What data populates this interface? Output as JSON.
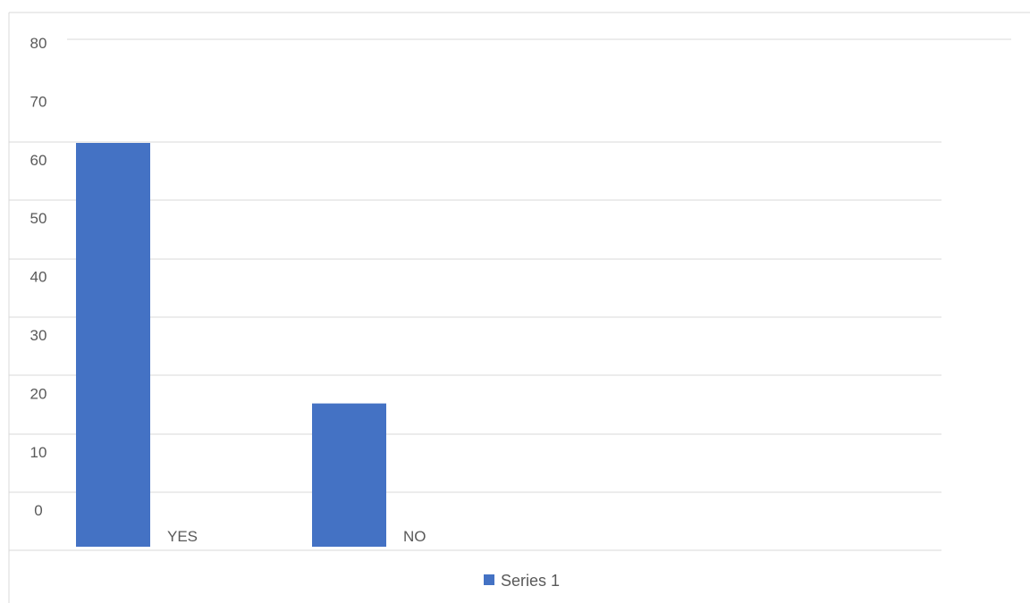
{
  "chart_data": {
    "type": "bar",
    "categories": [
      "YES",
      "NO"
    ],
    "series": [
      {
        "name": "Series 1",
        "values": [
          62,
          22
        ],
        "color": "#4472C4"
      }
    ],
    "yticks": [
      0,
      10,
      20,
      30,
      40,
      50,
      60,
      70,
      80
    ],
    "ylim": [
      0,
      80
    ],
    "title": "",
    "xlabel": "",
    "ylabel": "",
    "grid": true,
    "legend_position": "bottom"
  },
  "colors": {
    "gridline": "#d9d9d9",
    "tick_text": "#595959",
    "frame": "#d9d9d9"
  }
}
